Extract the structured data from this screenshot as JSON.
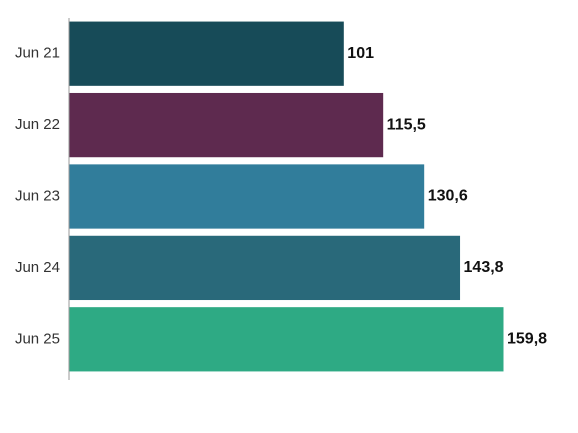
{
  "chart_data": {
    "type": "bar",
    "orientation": "horizontal",
    "categories": [
      "Jun 21",
      "Jun 22",
      "Jun 23",
      "Jun 24",
      "Jun 25"
    ],
    "values": [
      101,
      115.5,
      130.6,
      143.8,
      159.8
    ],
    "value_labels": [
      "101",
      "115,5",
      "130,6",
      "143,8",
      "159,8"
    ],
    "colors": [
      "#174b58",
      "#5e2a4f",
      "#317d9b",
      "#29697a",
      "#2eaa84"
    ]
  }
}
